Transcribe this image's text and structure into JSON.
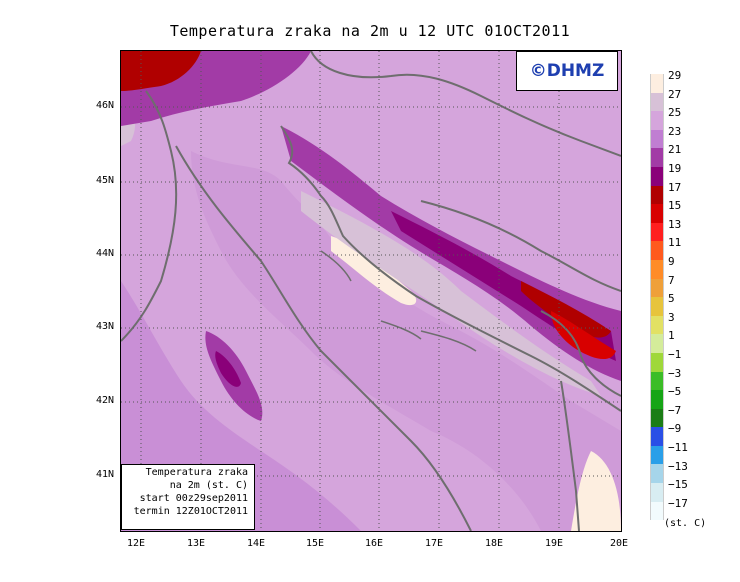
{
  "title": "Temperatura zraka na 2m u 12 UTC 01OCT2011",
  "logo": "©DHMZ",
  "infobox": {
    "line1": "Temperatura zraka",
    "line2": "na 2m (st. C)",
    "line3": "start 00z29sep2011",
    "line4": "termin 12Z01OCT2011"
  },
  "lat_labels": [
    "46N",
    "45N",
    "44N",
    "43N",
    "42N",
    "41N"
  ],
  "lon_labels": [
    "12E",
    "13E",
    "14E",
    "15E",
    "16E",
    "17E",
    "18E",
    "19E",
    "20E"
  ],
  "colorbar": {
    "labels": [
      "29",
      "27",
      "25",
      "23",
      "21",
      "19",
      "17",
      "15",
      "13",
      "11",
      "9",
      "7",
      "5",
      "3",
      "1",
      "−1",
      "−3",
      "−5",
      "−7",
      "−9",
      "−11",
      "−13",
      "−15",
      "−17"
    ],
    "colors": [
      "#fdeee0",
      "#d7c1d7",
      "#d5a5dc",
      "#c07ed2",
      "#a23ba6",
      "#8a0079",
      "#b00000",
      "#d80000",
      "#ff1f1f",
      "#ff5a1e",
      "#ff8c28",
      "#efa03a",
      "#e7c43c",
      "#e2e164",
      "#d4ec9a",
      "#9fd83a",
      "#3bbd27",
      "#16a516",
      "#1b7d16",
      "#2a4fe6",
      "#2a9fe8",
      "#a6d5ea",
      "#d8edf2",
      "#f2fbfd"
    ],
    "unit": "(st. C)"
  }
}
